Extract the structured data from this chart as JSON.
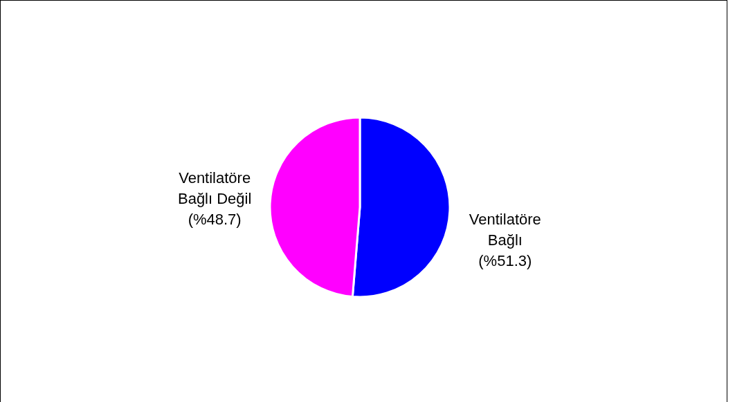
{
  "chart_data": {
    "type": "pie",
    "categories": [
      "Ventilatöre Bağlı",
      "Ventilatöre Bağlı Değil"
    ],
    "values": [
      51.3,
      48.7
    ],
    "colors": [
      "#0000ff",
      "#ff00ff"
    ],
    "value_labels": [
      "(%51.3)",
      "(%48.7)"
    ]
  }
}
